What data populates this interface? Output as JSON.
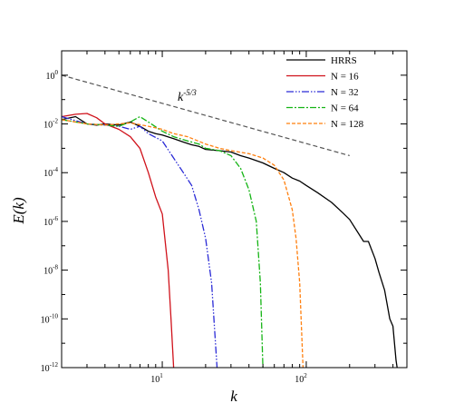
{
  "chart_data": {
    "type": "line",
    "xlabel": "k",
    "ylabel": "E(k)",
    "xscale": "log",
    "yscale": "log",
    "xlim": [
      2,
      500
    ],
    "ylim": [
      1e-12,
      10
    ],
    "x_ticks": [
      {
        "value": 10,
        "label": "10",
        "exp": "1"
      },
      {
        "value": 100,
        "label": "10",
        "exp": "2"
      }
    ],
    "y_ticks": [
      {
        "value": 1,
        "label": "10",
        "exp": "0"
      },
      {
        "value": 0.01,
        "label": "10",
        "exp": "-2"
      },
      {
        "value": 0.0001,
        "label": "10",
        "exp": "-4"
      },
      {
        "value": 1e-06,
        "label": "10",
        "exp": "-6"
      },
      {
        "value": 1e-08,
        "label": "10",
        "exp": "-8"
      },
      {
        "value": 1e-10,
        "label": "10",
        "exp": "-10"
      },
      {
        "value": 1e-12,
        "label": "10",
        "exp": "-12"
      }
    ],
    "legend_position": "top-right",
    "annotation": {
      "text": "k",
      "sup": "-5/3"
    },
    "reference_line": {
      "x": [
        2,
        200
      ],
      "y": [
        1.0,
        0.0005
      ],
      "color": "#555555",
      "dash": "5,3"
    },
    "series": [
      {
        "name": "HRRS",
        "color": "#000000",
        "dash": "",
        "x": [
          2,
          2.5,
          3,
          3.5,
          4,
          5,
          6,
          7,
          8,
          9,
          10,
          12,
          14,
          16,
          18,
          20,
          25,
          30,
          35,
          40,
          50,
          60,
          70,
          80,
          90,
          100,
          120,
          150,
          180,
          200,
          250,
          270,
          300,
          320,
          350,
          380,
          400,
          420,
          430
        ],
        "y": [
          0.015,
          0.02,
          0.01,
          0.009,
          0.01,
          0.009,
          0.012,
          0.008,
          0.005,
          0.004,
          0.0035,
          0.0025,
          0.0018,
          0.0014,
          0.0012,
          0.0009,
          0.0008,
          0.0007,
          0.0005,
          0.0004,
          0.00025,
          0.00015,
          0.0001,
          6e-05,
          4.5e-05,
          3e-05,
          1.5e-05,
          6e-06,
          2.2e-06,
          1.2e-06,
          1.5e-07,
          1.5e-07,
          3e-08,
          8e-09,
          1.5e-09,
          1e-10,
          5e-11,
          2e-12,
          8e-13
        ]
      },
      {
        "name": "N = 16",
        "color": "#d0121b",
        "dash": "",
        "x": [
          2,
          2.5,
          3,
          3.5,
          4,
          5,
          6,
          7,
          8,
          9,
          10,
          11,
          11.5,
          12
        ],
        "y": [
          0.02,
          0.025,
          0.027,
          0.018,
          0.01,
          0.006,
          0.003,
          0.001,
          0.0001,
          1e-05,
          2e-06,
          1e-08,
          1e-10,
          1e-12
        ]
      },
      {
        "name": "N = 32",
        "color": "#2a2ad6",
        "dash": "8,2,1.5,2,1.5,2",
        "x": [
          2,
          3,
          4,
          5,
          6,
          7,
          8,
          10,
          12,
          14,
          16,
          18,
          20,
          22,
          24
        ],
        "y": [
          0.02,
          0.01,
          0.009,
          0.008,
          0.006,
          0.008,
          0.004,
          0.002,
          0.0004,
          0.0001,
          3e-05,
          3e-06,
          2e-07,
          3e-09,
          1e-12
        ]
      },
      {
        "name": "N = 64",
        "color": "#14b414",
        "dash": "7,2,2,2",
        "x": [
          2,
          3,
          4,
          5,
          6,
          7,
          8,
          10,
          12,
          15,
          18,
          20,
          25,
          30,
          35,
          40,
          45,
          48,
          50
        ],
        "y": [
          0.015,
          0.01,
          0.009,
          0.008,
          0.012,
          0.02,
          0.012,
          0.005,
          0.003,
          0.002,
          0.0015,
          0.001,
          0.0008,
          0.0005,
          0.00015,
          2e-05,
          1e-06,
          3e-09,
          1e-12
        ]
      },
      {
        "name": "N = 128",
        "color": "#ff7f0e",
        "dash": "4,2",
        "x": [
          2,
          3,
          4,
          6,
          8,
          10,
          12,
          15,
          20,
          25,
          30,
          40,
          50,
          60,
          70,
          80,
          85,
          90,
          95
        ],
        "y": [
          0.015,
          0.01,
          0.009,
          0.011,
          0.008,
          0.006,
          0.004,
          0.003,
          0.0015,
          0.001,
          0.0008,
          0.0006,
          0.0004,
          0.0002,
          5e-05,
          3e-06,
          2e-07,
          3e-09,
          1e-12
        ]
      }
    ]
  }
}
